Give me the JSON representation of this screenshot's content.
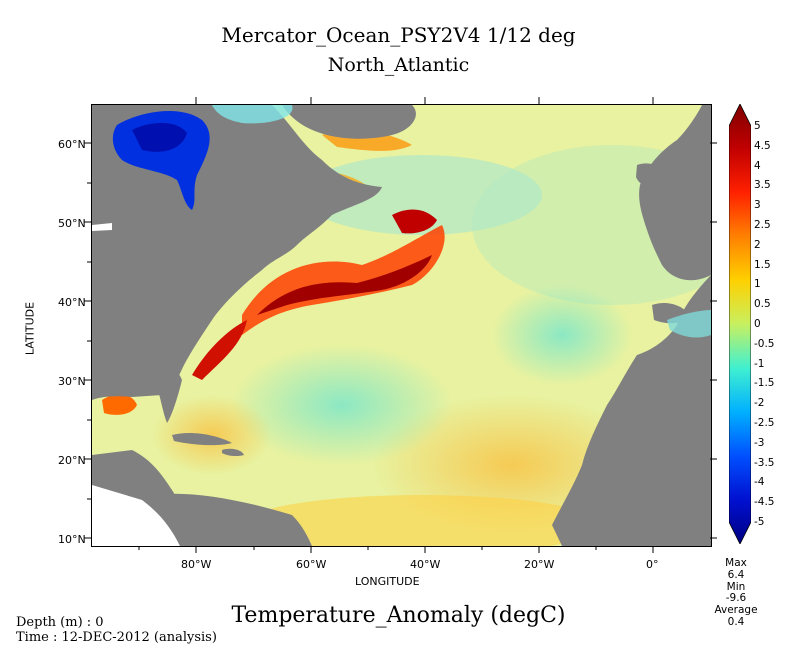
{
  "header": {
    "title_line1": "Mercator_Ocean_PSY2V4 1/12 deg",
    "title_line2": "North_Atlantic"
  },
  "map": {
    "y_axis_label": "LATITUDE",
    "x_axis_label": "LONGITUDE",
    "lat_ticks": [
      "60°N",
      "50°N",
      "40°N",
      "30°N",
      "20°N",
      "10°N"
    ],
    "lon_ticks": [
      "80°W",
      "60°W",
      "40°W",
      "20°W",
      "0°"
    ],
    "colors": {
      "land": "#808080",
      "ocean_base": "#f0f6a0",
      "warm_anomaly": "#a00000",
      "cold_anomaly": "#0020d0"
    }
  },
  "colorbar": {
    "ticks": [
      "5",
      "4.5",
      "4",
      "3.5",
      "3",
      "2.5",
      "2",
      "1.5",
      "1",
      "0.5",
      "0",
      "-0.5",
      "-1",
      "-1.5",
      "-2",
      "-2.5",
      "-3",
      "-3.5",
      "-4",
      "-4.5",
      "-5"
    ]
  },
  "footer": {
    "variable_title": "Temperature_Anomaly (degC)",
    "depth_text": "Depth (m) : 0",
    "time_text": "Time : 12-DEC-2012 (analysis)"
  },
  "stats": {
    "max_label": "Max",
    "max_value": "6.4",
    "min_label": "Min",
    "min_value": "-9.6",
    "average_label": "Average",
    "average_value": "0.4"
  }
}
